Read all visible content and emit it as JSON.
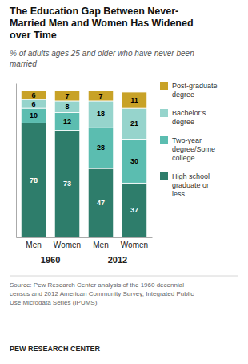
{
  "chart_data": {
    "type": "bar",
    "stacked": true,
    "data_labels": true,
    "tick_labels": "x",
    "title": "The Education Gap Between Never-\nMarried Men and Women Has Widened\nover Time",
    "subtitle": "% of adults ages 25 and older who have never been\nmarried",
    "categories": [
      "Men",
      "Women",
      "Men",
      "Women"
    ],
    "annotations": [
      "1960",
      "2012"
    ],
    "series": [
      {
        "name": "High school\ngraduate or\nless",
        "color": "#2e7d6b",
        "values": [
          78,
          73,
          47,
          37
        ]
      },
      {
        "name": "Two-year\ndegree/Some\ncollege",
        "color": "#5bbdb0",
        "values": [
          10,
          12,
          28,
          30
        ]
      },
      {
        "name": "Bachelor’s\ndegree",
        "color": "#96d4cc",
        "values": [
          6,
          8,
          18,
          21
        ]
      },
      {
        "name": "Post-graduate\ndegree",
        "color": "#c8a227",
        "values": [
          6,
          7,
          7,
          11
        ]
      }
    ],
    "ylim": [
      0,
      105
    ],
    "source": "Source: Pew Research Center analysis of the 1960 decennial\ncensus and 2012 American Community Survey, Integrated Public\nUse Microdata Series (IPUMS)",
    "footer": "PEW RESEARCH CENTER"
  }
}
